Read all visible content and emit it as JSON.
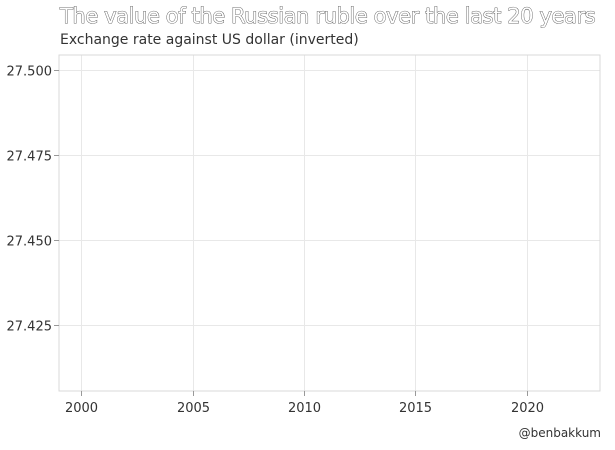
{
  "chart_data": {
    "type": "line",
    "title": "The value of the Russian ruble over the last 20 years",
    "subtitle": "Exchange rate against US dollar (inverted)",
    "credit": "@benbakkum",
    "x_ticks": [
      2000,
      2005,
      2010,
      2015,
      2020
    ],
    "y_ticks": [
      27.425,
      27.45,
      27.475,
      27.5
    ],
    "y_tick_labels": [
      "27.425",
      "27.450",
      "27.475",
      "27.500"
    ],
    "xlim": [
      1999,
      2023.3
    ],
    "ylim": [
      27.5045,
      27.4055
    ],
    "y_inverted": true,
    "grid": true,
    "series": []
  }
}
